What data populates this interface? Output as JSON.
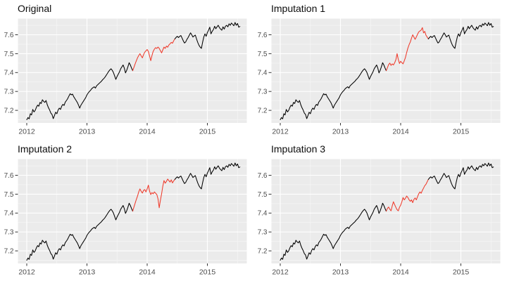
{
  "chart_data": {
    "type": "line",
    "layout": "2x2-panel-grid",
    "x_step": 0.02,
    "x_axis": {
      "ticks": [
        2012,
        2013,
        2014,
        2015
      ],
      "minor_ticks": [
        2012.5,
        2013.5,
        2014.5,
        2015.5
      ],
      "range": [
        2011.86,
        2015.67
      ]
    },
    "y_axis": {
      "ticks": [
        7.2,
        7.3,
        7.4,
        7.5,
        7.6
      ],
      "minor_ticks": [
        7.15,
        7.25,
        7.35,
        7.45,
        7.55,
        7.65
      ],
      "range": [
        7.115,
        7.687
      ]
    },
    "colors": {
      "observed": "#000000",
      "imputed": "#ef3b2c",
      "panel_bg": "#ebebeb",
      "grid_major": "#ffffff",
      "grid_minor": "#f5f5f5",
      "tick_mark": "#333333",
      "tick_label": "#4d4d4d",
      "figure_bg": "#ffffff",
      "title": "#0d0d0d"
    },
    "observed_pre_gap": {
      "x_start": 2012.0,
      "values": [
        7.15,
        7.162,
        7.155,
        7.182,
        7.176,
        7.205,
        7.192,
        7.2,
        7.216,
        7.228,
        7.222,
        7.242,
        7.236,
        7.256,
        7.248,
        7.242,
        7.252,
        7.23,
        7.214,
        7.202,
        7.186,
        7.178,
        7.156,
        7.172,
        7.19,
        7.182,
        7.202,
        7.212,
        7.205,
        7.222,
        7.232,
        7.226,
        7.244,
        7.252,
        7.262,
        7.276,
        7.288,
        7.282,
        7.286,
        7.272,
        7.262,
        7.252,
        7.242,
        7.228,
        7.212,
        7.228,
        7.238,
        7.248,
        7.258,
        7.268,
        7.282,
        7.292,
        7.3,
        7.306,
        7.315,
        7.32,
        7.325,
        7.318,
        7.33,
        7.336,
        7.342,
        7.348,
        7.354,
        7.362,
        7.368,
        7.376,
        7.386,
        7.396,
        7.406,
        7.414,
        7.42,
        7.412,
        7.4,
        7.382,
        7.364,
        7.38,
        7.392,
        7.404,
        7.42,
        7.43,
        7.44,
        7.424,
        7.398,
        7.412,
        7.43,
        7.452,
        7.44,
        7.424,
        7.41
      ]
    },
    "gap": {
      "x_start": 2013.76,
      "x_end": 2014.46
    },
    "observed_post_gap": {
      "x_start": 2014.46,
      "values": [
        7.578,
        7.586,
        7.592,
        7.585,
        7.592,
        7.596,
        7.582,
        7.568,
        7.556,
        7.562,
        7.575,
        7.585,
        7.598,
        7.61,
        7.6,
        7.588,
        7.594,
        7.598,
        7.578,
        7.56,
        7.545,
        7.535,
        7.528,
        7.56,
        7.588,
        7.605,
        7.592,
        7.612,
        7.625,
        7.64,
        7.605,
        7.618,
        7.628,
        7.645,
        7.632,
        7.642,
        7.65,
        7.638,
        7.63,
        7.624,
        7.642,
        7.63,
        7.645,
        7.65,
        7.642,
        7.658,
        7.65,
        7.662,
        7.655,
        7.648,
        7.665,
        7.65,
        7.66,
        7.64,
        7.644
      ]
    },
    "panels": [
      {
        "title": "Original",
        "gap_values": [
          7.41,
          7.428,
          7.446,
          7.462,
          7.478,
          7.49,
          7.5,
          7.488,
          7.478,
          7.495,
          7.508,
          7.515,
          7.522,
          7.512,
          7.488,
          7.463,
          7.49,
          7.512,
          7.524,
          7.532,
          7.528,
          7.535,
          7.528,
          7.516,
          7.504,
          7.52,
          7.535,
          7.528,
          7.54,
          7.534,
          7.546,
          7.552,
          7.56,
          7.555,
          7.568,
          7.578
        ]
      },
      {
        "title": "Imputation 1",
        "gap_values": [
          7.41,
          7.426,
          7.442,
          7.45,
          7.438,
          7.446,
          7.44,
          7.452,
          7.468,
          7.5,
          7.47,
          7.448,
          7.46,
          7.452,
          7.446,
          7.462,
          7.48,
          7.506,
          7.53,
          7.548,
          7.562,
          7.582,
          7.6,
          7.588,
          7.576,
          7.588,
          7.602,
          7.615,
          7.62,
          7.625,
          7.638,
          7.61,
          7.618,
          7.598,
          7.588,
          7.578
        ]
      },
      {
        "title": "Imputation 2",
        "gap_values": [
          7.41,
          7.432,
          7.452,
          7.472,
          7.49,
          7.512,
          7.528,
          7.515,
          7.506,
          7.52,
          7.524,
          7.512,
          7.528,
          7.548,
          7.516,
          7.498,
          7.508,
          7.502,
          7.512,
          7.505,
          7.498,
          7.475,
          7.428,
          7.468,
          7.502,
          7.542,
          7.572,
          7.558,
          7.568,
          7.58,
          7.572,
          7.564,
          7.576,
          7.56,
          7.57,
          7.578
        ]
      },
      {
        "title": "Imputation 3",
        "gap_values": [
          7.41,
          7.425,
          7.432,
          7.42,
          7.412,
          7.438,
          7.46,
          7.444,
          7.43,
          7.418,
          7.412,
          7.43,
          7.442,
          7.46,
          7.482,
          7.47,
          7.478,
          7.49,
          7.482,
          7.47,
          7.462,
          7.47,
          7.455,
          7.472,
          7.48,
          7.47,
          7.486,
          7.502,
          7.512,
          7.505,
          7.52,
          7.532,
          7.545,
          7.552,
          7.565,
          7.578
        ]
      }
    ]
  }
}
